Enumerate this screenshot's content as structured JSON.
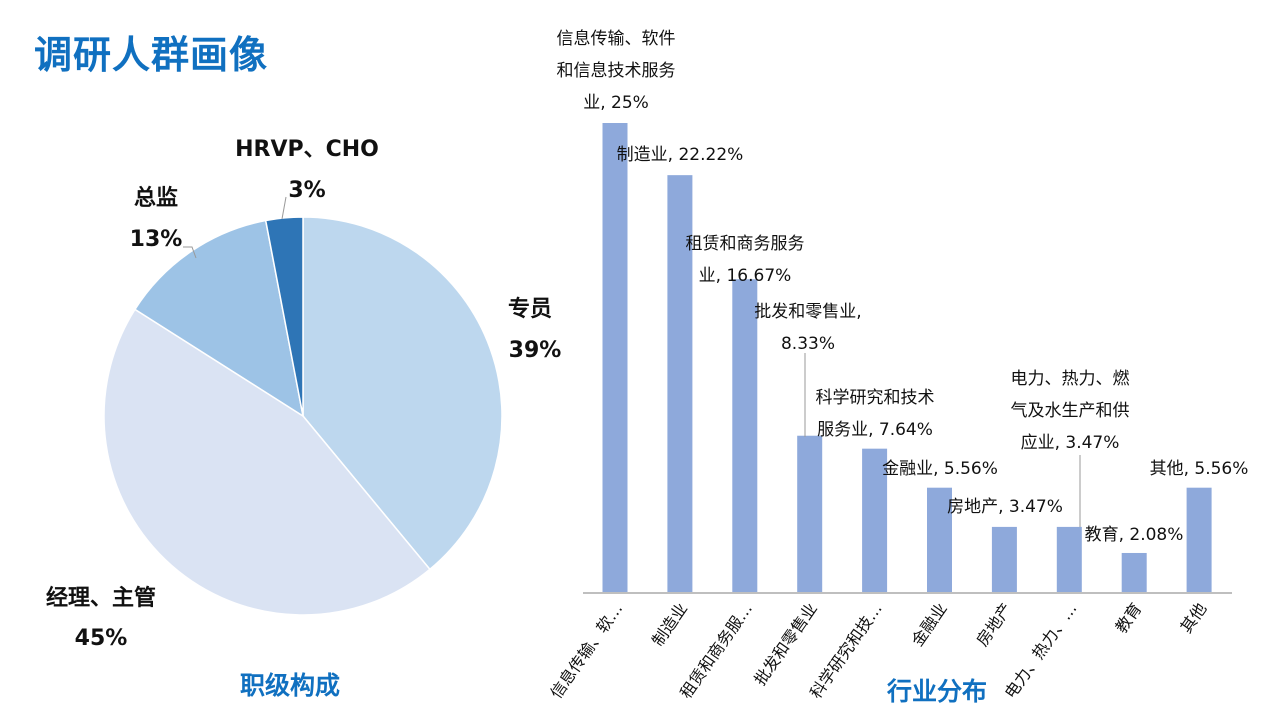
{
  "title": "调研人群画像",
  "chart_data": [
    {
      "type": "pie",
      "subtitle": "职级构成",
      "slices": [
        {
          "label": "专员",
          "value": 39,
          "value_label": "39%",
          "color": "#BDD7EE"
        },
        {
          "label": "经理、主管",
          "value": 45,
          "value_label": "45%",
          "color": "#DAE3F3"
        },
        {
          "label": "总监",
          "value": 13,
          "value_label": "13%",
          "color": "#9DC3E6"
        },
        {
          "label": "HRVP、CHO",
          "value": 3,
          "value_label": "3%",
          "color": "#2E75B6"
        }
      ]
    },
    {
      "type": "bar",
      "subtitle": "行业分布",
      "bar_color": "#8EA9DB",
      "categories": [
        "信息传输、软…",
        "制造业",
        "租赁和商务服…",
        "批发和零售业",
        "科学研究和技…",
        "金融业",
        "房地产",
        "电力、热力、…",
        "教育",
        "其他"
      ],
      "data_labels": [
        [
          "信息传输、软件",
          "和信息技术服务",
          "业, 25%"
        ],
        [
          "制造业, 22.22%"
        ],
        [
          "租赁和商务服务",
          "业, 16.67%"
        ],
        [
          "批发和零售业,",
          "8.33%"
        ],
        [
          "科学研究和技术",
          "服务业, 7.64%"
        ],
        [
          "金融业, 5.56%"
        ],
        [
          "房地产, 3.47%"
        ],
        [
          "电力、热力、燃",
          "气及水生产和供",
          "应业, 3.47%"
        ],
        [
          "教育, 2.08%"
        ],
        [
          "其他, 5.56%"
        ]
      ],
      "values": [
        25,
        22.22,
        16.67,
        8.33,
        7.64,
        5.56,
        3.47,
        3.47,
        2.08,
        5.56
      ]
    }
  ]
}
